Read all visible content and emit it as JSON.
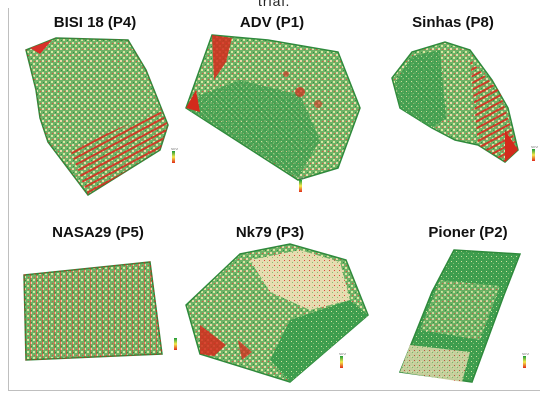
{
  "header_text": "trial.",
  "legend_label": "NDVI",
  "colors": {
    "high": "#1a9a3a",
    "mid": "#e9d9a8",
    "low": "#e02a1a"
  },
  "plots": [
    {
      "id": "p4",
      "title": "BISI 18 (P4)"
    },
    {
      "id": "p1",
      "title": "ADV (P1)"
    },
    {
      "id": "p8",
      "title": "Sinhas (P8)"
    },
    {
      "id": "p5",
      "title": "NASA29 (P5)"
    },
    {
      "id": "p3",
      "title": "Nk79 (P3)"
    },
    {
      "id": "p2",
      "title": "Pioner (P2)"
    }
  ]
}
